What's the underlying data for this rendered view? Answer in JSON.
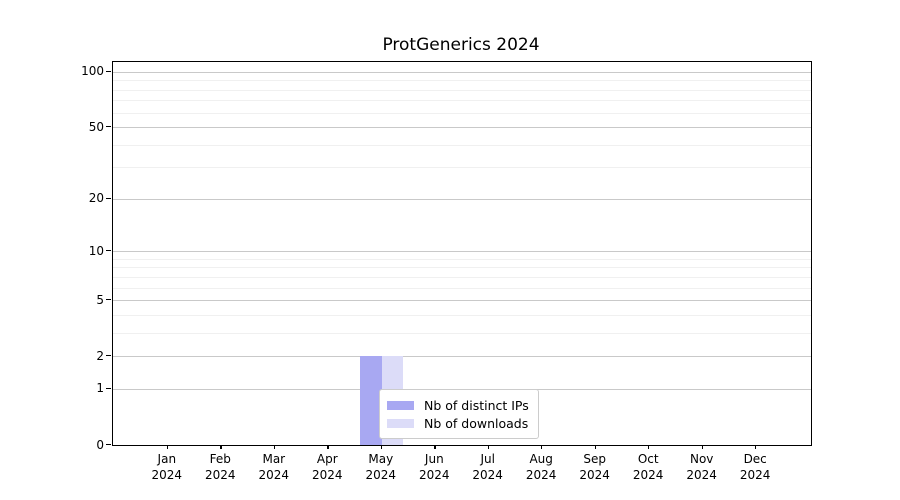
{
  "figure": {
    "title": "ProtGenerics 2024"
  },
  "chart_data": {
    "type": "bar",
    "title": "ProtGenerics 2024",
    "categories": [
      "Jan",
      "Feb",
      "Mar",
      "Apr",
      "May",
      "Jun",
      "Jul",
      "Aug",
      "Sep",
      "Oct",
      "Nov",
      "Dec"
    ],
    "category_year": "2024",
    "series": [
      {
        "name": "Nb of distinct IPs",
        "color": "#a8a8f2",
        "values": [
          0,
          0,
          0,
          0,
          2,
          0,
          0,
          0,
          0,
          0,
          0,
          0
        ]
      },
      {
        "name": "Nb of downloads",
        "color": "#dcdcf8",
        "values": [
          0,
          0,
          0,
          0,
          2,
          0,
          0,
          0,
          0,
          0,
          0,
          0
        ]
      }
    ],
    "xlabel": "",
    "ylabel": "",
    "yscale": "log1p",
    "yticks_major": [
      0,
      1,
      2,
      5,
      10,
      20,
      50,
      100
    ],
    "yticks_minor": [
      3,
      4,
      6,
      7,
      8,
      9,
      30,
      40,
      60,
      70,
      80,
      90
    ],
    "ylim": [
      0,
      113
    ],
    "xlim": [
      -1.025,
      12.025
    ],
    "bar_group_width": 0.8,
    "grid": "horizontal",
    "legend": {
      "position": "lower-center",
      "entries": [
        "Nb of distinct IPs",
        "Nb of downloads"
      ]
    }
  },
  "colors": {
    "background": "#ffffff",
    "axis": "#000000",
    "grid_major": "#c9c9c9",
    "grid_minor": "#f0f0f0",
    "bar_distinct_ips": "#a8a8f2",
    "bar_downloads": "#dcdcf8"
  }
}
